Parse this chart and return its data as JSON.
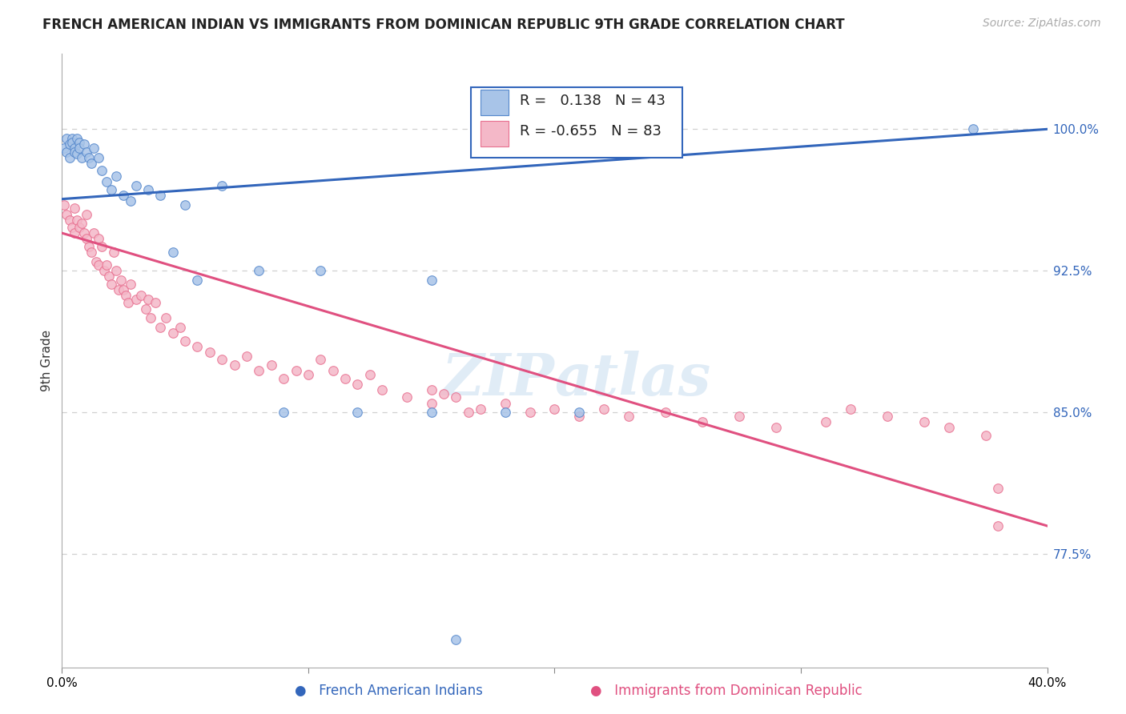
{
  "title": "FRENCH AMERICAN INDIAN VS IMMIGRANTS FROM DOMINICAN REPUBLIC 9TH GRADE CORRELATION CHART",
  "source": "Source: ZipAtlas.com",
  "ylabel": "9th Grade",
  "ytick_labels": [
    "77.5%",
    "85.0%",
    "92.5%",
    "100.0%"
  ],
  "ytick_values": [
    0.775,
    0.85,
    0.925,
    1.0
  ],
  "xlim": [
    0.0,
    0.4
  ],
  "ylim": [
    0.715,
    1.04
  ],
  "blue_R": 0.138,
  "blue_N": 43,
  "pink_R": -0.655,
  "pink_N": 83,
  "blue_scatter_x": [
    0.001,
    0.002,
    0.002,
    0.003,
    0.003,
    0.004,
    0.004,
    0.005,
    0.005,
    0.006,
    0.006,
    0.007,
    0.007,
    0.008,
    0.009,
    0.01,
    0.011,
    0.012,
    0.013,
    0.015,
    0.016,
    0.018,
    0.02,
    0.022,
    0.025,
    0.028,
    0.03,
    0.035,
    0.04,
    0.045,
    0.05,
    0.055,
    0.065,
    0.08,
    0.09,
    0.105,
    0.12,
    0.15,
    0.18,
    0.21,
    0.15,
    0.16,
    0.37
  ],
  "blue_scatter_y": [
    0.99,
    0.995,
    0.988,
    0.992,
    0.985,
    0.995,
    0.993,
    0.99,
    0.988,
    0.987,
    0.995,
    0.993,
    0.99,
    0.985,
    0.992,
    0.988,
    0.985,
    0.982,
    0.99,
    0.985,
    0.978,
    0.972,
    0.968,
    0.975,
    0.965,
    0.962,
    0.97,
    0.968,
    0.965,
    0.935,
    0.96,
    0.92,
    0.97,
    0.925,
    0.85,
    0.925,
    0.85,
    0.85,
    0.85,
    0.85,
    0.92,
    0.73,
    1.0
  ],
  "pink_scatter_x": [
    0.001,
    0.002,
    0.003,
    0.004,
    0.005,
    0.005,
    0.006,
    0.007,
    0.008,
    0.009,
    0.01,
    0.01,
    0.011,
    0.012,
    0.013,
    0.014,
    0.015,
    0.015,
    0.016,
    0.017,
    0.018,
    0.019,
    0.02,
    0.021,
    0.022,
    0.023,
    0.024,
    0.025,
    0.026,
    0.027,
    0.028,
    0.03,
    0.032,
    0.034,
    0.035,
    0.036,
    0.038,
    0.04,
    0.042,
    0.045,
    0.048,
    0.05,
    0.055,
    0.06,
    0.065,
    0.07,
    0.075,
    0.08,
    0.085,
    0.09,
    0.095,
    0.1,
    0.105,
    0.11,
    0.115,
    0.12,
    0.125,
    0.13,
    0.14,
    0.15,
    0.155,
    0.16,
    0.17,
    0.18,
    0.19,
    0.2,
    0.21,
    0.22,
    0.23,
    0.245,
    0.26,
    0.275,
    0.29,
    0.31,
    0.32,
    0.335,
    0.35,
    0.36,
    0.375,
    0.38,
    0.15,
    0.165,
    0.38
  ],
  "pink_scatter_y": [
    0.96,
    0.955,
    0.952,
    0.948,
    0.958,
    0.945,
    0.952,
    0.948,
    0.95,
    0.945,
    0.942,
    0.955,
    0.938,
    0.935,
    0.945,
    0.93,
    0.928,
    0.942,
    0.938,
    0.925,
    0.928,
    0.922,
    0.918,
    0.935,
    0.925,
    0.915,
    0.92,
    0.915,
    0.912,
    0.908,
    0.918,
    0.91,
    0.912,
    0.905,
    0.91,
    0.9,
    0.908,
    0.895,
    0.9,
    0.892,
    0.895,
    0.888,
    0.885,
    0.882,
    0.878,
    0.875,
    0.88,
    0.872,
    0.875,
    0.868,
    0.872,
    0.87,
    0.878,
    0.872,
    0.868,
    0.865,
    0.87,
    0.862,
    0.858,
    0.862,
    0.86,
    0.858,
    0.852,
    0.855,
    0.85,
    0.852,
    0.848,
    0.852,
    0.848,
    0.85,
    0.845,
    0.848,
    0.842,
    0.845,
    0.852,
    0.848,
    0.845,
    0.842,
    0.838,
    0.81,
    0.855,
    0.85,
    0.79
  ],
  "blue_line_x0": 0.0,
  "blue_line_y0": 0.963,
  "blue_line_x1": 0.4,
  "blue_line_y1": 1.0,
  "pink_line_x0": 0.0,
  "pink_line_y0": 0.945,
  "pink_line_x1": 0.4,
  "pink_line_y1": 0.79,
  "blue_fill_color": "#a8c4e8",
  "blue_edge_color": "#5588cc",
  "pink_fill_color": "#f4b8c8",
  "pink_edge_color": "#e87090",
  "blue_line_color": "#3366bb",
  "pink_line_color": "#e05080",
  "marker_size": 70,
  "title_fontsize": 12,
  "axis_label_fontsize": 11,
  "tick_fontsize": 11,
  "legend_fontsize": 13,
  "source_fontsize": 10,
  "watermark_color": "#c8ddf0",
  "background_color": "#ffffff",
  "grid_color": "#d0d0d0"
}
